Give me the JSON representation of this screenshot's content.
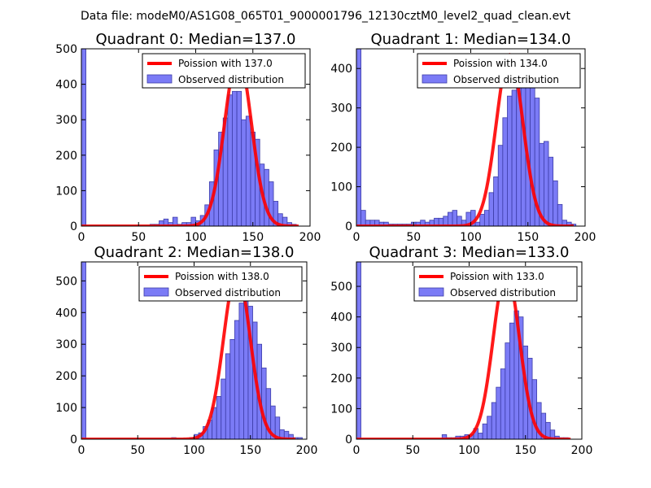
{
  "suptitle": "Data file: modeM0/AS1G08_065T01_9000001796_12130cztM0_level2_quad_clean.evt",
  "colors": {
    "bar_fill": "#7b7bf6",
    "bar_edge": "#3d3da8",
    "curve": "#ff0000",
    "axis": "#000000"
  },
  "chart_data": [
    {
      "type": "bar",
      "title": "Quadrant 0: Median=137.0",
      "xlim": [
        0,
        200
      ],
      "ylim": [
        0,
        500
      ],
      "xticks": [
        0,
        50,
        100,
        150,
        200
      ],
      "yticks": [
        0,
        100,
        200,
        300,
        400,
        500
      ],
      "bin_width": 4,
      "bar_x": [
        0,
        60,
        64,
        68,
        72,
        76,
        80,
        84,
        88,
        92,
        96,
        100,
        104,
        108,
        112,
        116,
        120,
        124,
        128,
        132,
        136,
        140,
        144,
        148,
        152,
        156,
        160,
        164,
        168,
        172,
        176,
        180,
        184,
        188
      ],
      "bar_values": [
        520,
        5,
        5,
        15,
        20,
        10,
        25,
        5,
        10,
        10,
        25,
        15,
        30,
        60,
        125,
        215,
        265,
        305,
        370,
        380,
        380,
        300,
        310,
        265,
        245,
        175,
        160,
        125,
        70,
        35,
        25,
        10,
        5,
        0
      ],
      "legend": [
        "Poission with 137.0",
        "Observed distribution"
      ],
      "curve": {
        "label": "Poission with 137.0",
        "mean": 137.0,
        "peak": 480,
        "x_range": [
          0,
          190
        ]
      }
    },
    {
      "type": "bar",
      "title": "Quadrant 1: Median=134.0",
      "xlim": [
        0,
        200
      ],
      "ylim": [
        0,
        450
      ],
      "xticks": [
        0,
        50,
        100,
        150,
        200
      ],
      "yticks": [
        0,
        100,
        200,
        300,
        400
      ],
      "bin_width": 4,
      "bar_x": [
        0,
        4,
        8,
        12,
        16,
        20,
        24,
        28,
        32,
        36,
        40,
        44,
        48,
        52,
        56,
        60,
        64,
        68,
        72,
        76,
        80,
        84,
        88,
        92,
        96,
        100,
        104,
        108,
        112,
        116,
        120,
        124,
        128,
        132,
        136,
        140,
        144,
        148,
        152,
        156,
        160,
        164,
        168,
        172,
        176,
        180,
        184,
        188
      ],
      "bar_values": [
        450,
        40,
        15,
        15,
        15,
        10,
        10,
        5,
        5,
        5,
        5,
        5,
        10,
        10,
        15,
        10,
        15,
        20,
        20,
        25,
        35,
        40,
        25,
        15,
        35,
        40,
        10,
        30,
        40,
        85,
        125,
        205,
        275,
        330,
        345,
        395,
        425,
        415,
        365,
        325,
        210,
        215,
        175,
        115,
        55,
        15,
        10,
        5
      ],
      "legend": [
        "Poission with 134.0",
        "Observed distribution"
      ],
      "curve": {
        "label": "Poission with 134.0",
        "mean": 134.0,
        "peak": 435,
        "x_range": [
          0,
          190
        ]
      }
    },
    {
      "type": "bar",
      "title": "Quadrant 2: Median=138.0",
      "xlim": [
        0,
        200
      ],
      "ylim": [
        0,
        560
      ],
      "xticks": [
        0,
        50,
        100,
        150,
        200
      ],
      "yticks": [
        0,
        100,
        200,
        300,
        400,
        500
      ],
      "bin_width": 4,
      "bar_x": [
        0,
        80,
        96,
        100,
        104,
        108,
        112,
        116,
        120,
        124,
        128,
        132,
        136,
        140,
        144,
        148,
        152,
        156,
        160,
        164,
        168,
        172,
        176,
        180,
        184,
        188,
        192
      ],
      "bar_values": [
        560,
        5,
        5,
        15,
        20,
        40,
        60,
        100,
        135,
        190,
        270,
        315,
        375,
        430,
        470,
        420,
        370,
        300,
        225,
        160,
        105,
        70,
        30,
        25,
        15,
        5,
        5
      ],
      "legend": [
        "Poission with 138.0",
        "Observed distribution"
      ],
      "curve": {
        "label": "Poission with 138.0",
        "mean": 138.0,
        "peak": 530,
        "x_range": [
          0,
          190
        ]
      }
    },
    {
      "type": "bar",
      "title": "Quadrant 3: Median=133.0",
      "xlim": [
        0,
        200
      ],
      "ylim": [
        0,
        580
      ],
      "xticks": [
        0,
        50,
        100,
        150,
        200
      ],
      "yticks": [
        0,
        100,
        200,
        300,
        400,
        500
      ],
      "bin_width": 4,
      "bar_x": [
        0,
        76,
        80,
        84,
        88,
        92,
        96,
        100,
        104,
        108,
        112,
        116,
        120,
        124,
        128,
        132,
        136,
        140,
        144,
        148,
        152,
        156,
        160,
        164,
        168,
        172,
        176,
        180,
        184
      ],
      "bar_values": [
        580,
        15,
        5,
        5,
        10,
        10,
        15,
        15,
        35,
        20,
        50,
        75,
        120,
        170,
        230,
        315,
        380,
        420,
        400,
        305,
        265,
        195,
        120,
        85,
        55,
        30,
        10,
        5,
        5
      ],
      "legend": [
        "Poission with 133.0",
        "Observed distribution"
      ],
      "curve": {
        "label": "Poission with 133.0",
        "mean": 133.0,
        "peak": 550,
        "x_range": [
          0,
          190
        ]
      }
    }
  ]
}
